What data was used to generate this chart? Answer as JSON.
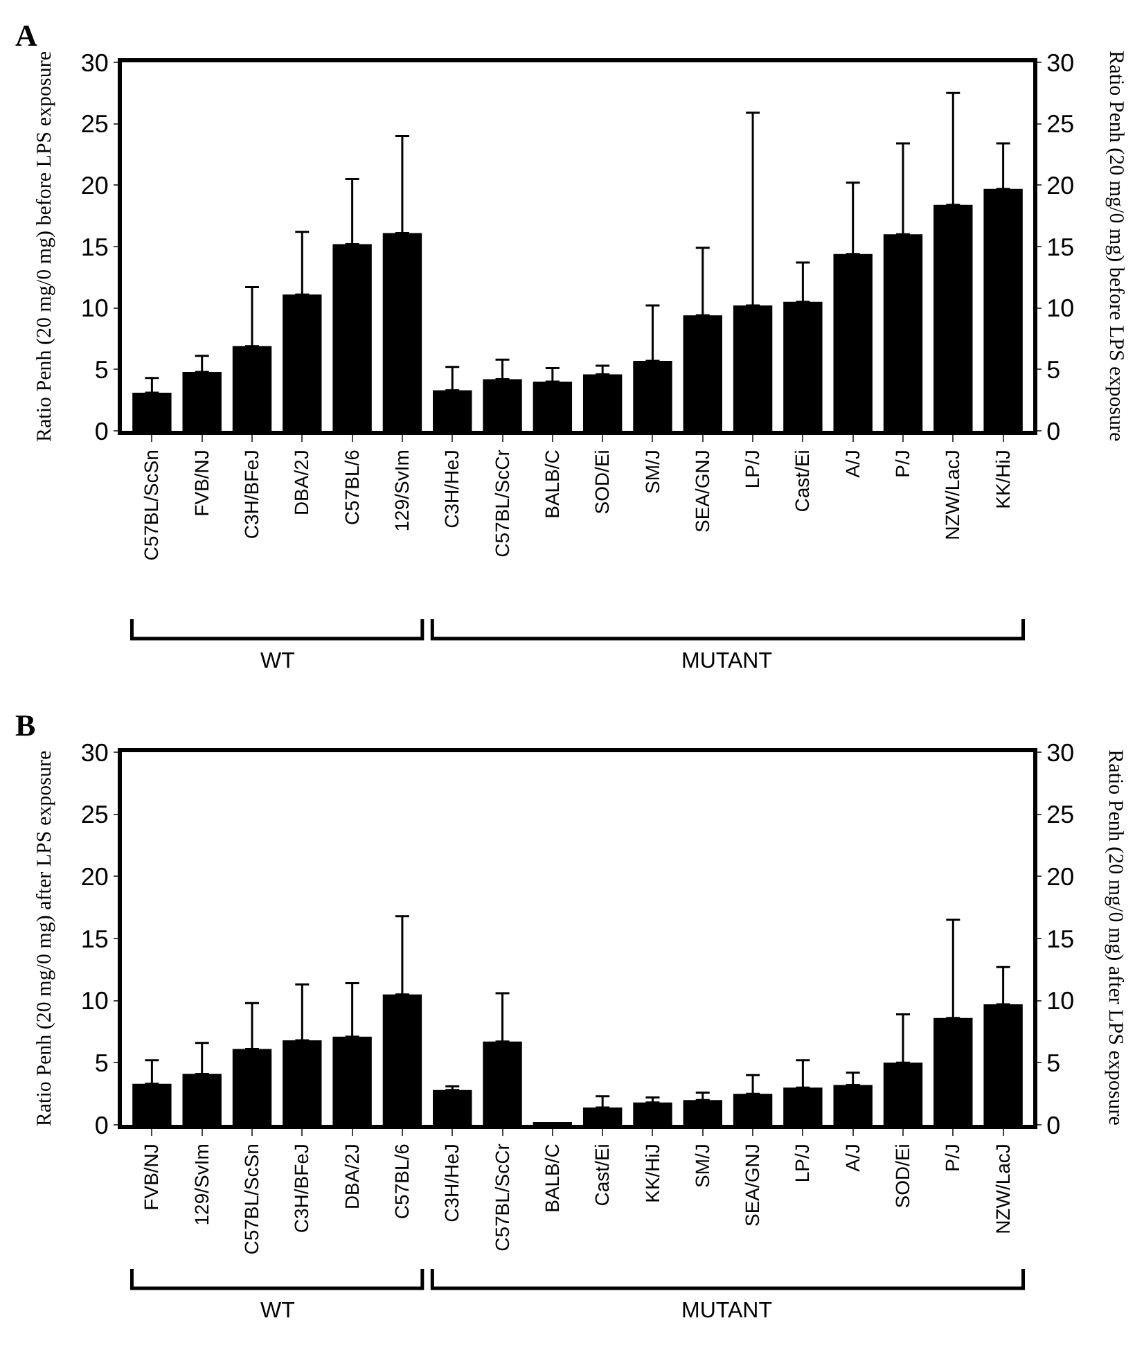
{
  "chart_data": [
    {
      "type": "bar",
      "categories": [
        "C57BL/ScSn",
        "FVB/NJ",
        "C3H/BFeJ",
        "DBA/2J",
        "C57BL/6",
        "129/SvIm",
        "C3H/HeJ",
        "C57BL/ScCr",
        "BALB/C",
        "SOD/Ei",
        "SM/J",
        "SEA/GNJ",
        "LP/J",
        "Cast/Ei",
        "A/J",
        "P/J",
        "NZW/LacJ",
        "KK/HiJ"
      ],
      "values": [
        3.1,
        4.8,
        6.9,
        11.1,
        15.2,
        16.1,
        3.3,
        4.2,
        4.0,
        4.6,
        5.7,
        9.4,
        10.2,
        10.5,
        14.4,
        16.0,
        18.4,
        19.7
      ],
      "errors": [
        [
          3.1,
          4.3
        ],
        [
          4.8,
          6.1
        ],
        [
          6.9,
          11.7
        ],
        [
          11.1,
          16.2
        ],
        [
          15.2,
          20.5
        ],
        [
          16.1,
          24.0
        ],
        [
          3.3,
          5.2
        ],
        [
          4.2,
          5.8
        ],
        [
          4.0,
          5.1
        ],
        [
          4.6,
          5.3
        ],
        [
          5.7,
          10.2
        ],
        [
          9.4,
          14.9
        ],
        [
          10.2,
          25.9
        ],
        [
          10.5,
          13.7
        ],
        [
          14.4,
          20.2
        ],
        [
          16.0,
          23.4
        ],
        [
          18.4,
          27.5
        ],
        [
          19.7,
          23.4
        ]
      ],
      "color": "#000000",
      "ylabel": "Ratio Penh (20 mg/0 mg) before LPS exposure",
      "y2label": "Ratio Penh (20 mg/0 mg) before LPS exposure",
      "ylim": [
        0,
        30
      ],
      "yticks": [
        0,
        5,
        10,
        15,
        20,
        25,
        30
      ],
      "y2lim": [
        0,
        30
      ],
      "y2ticks": [
        0,
        5,
        10,
        15,
        20,
        25,
        30
      ],
      "annotations": [
        "A",
        "WT",
        "MUTANT"
      ],
      "grid": false,
      "legend": false
    },
    {
      "type": "bar",
      "categories": [
        "FVB/NJ",
        "129/SvIm",
        "C57BL/ScSn",
        "C3H/BFeJ",
        "DBA/2J",
        "C57BL/6",
        "C3H/HeJ",
        "C57BL/ScCr",
        "BALB/C",
        "Cast/Ei",
        "KK/HiJ",
        "SM/J",
        "SEA/GNJ",
        "LP/J",
        "A/J",
        "SOD/Ei",
        "P/J",
        "NZW/LacJ"
      ],
      "values": [
        3.3,
        4.1,
        6.1,
        6.8,
        7.1,
        10.5,
        2.8,
        6.7,
        0.2,
        1.4,
        1.8,
        2.0,
        2.5,
        3.0,
        3.2,
        5.0,
        8.6,
        9.7
      ],
      "errors": [
        [
          3.3,
          5.2
        ],
        [
          4.1,
          6.6
        ],
        [
          6.1,
          9.8
        ],
        [
          6.8,
          11.3
        ],
        [
          7.1,
          11.4
        ],
        [
          10.5,
          16.8
        ],
        [
          2.8,
          3.1
        ],
        [
          6.7,
          10.6
        ],
        null,
        [
          1.4,
          2.3
        ],
        [
          1.8,
          2.2
        ],
        [
          2.0,
          2.6
        ],
        [
          2.5,
          4.0
        ],
        [
          3.0,
          5.2
        ],
        [
          3.2,
          4.2
        ],
        [
          5.0,
          8.9
        ],
        [
          8.6,
          16.5
        ],
        [
          9.7,
          12.7
        ]
      ],
      "color": "#000000",
      "ylabel": "Ratio Penh (20 mg/0 mg) after LPS exposure",
      "y2label": "Ratio Penh (20 mg/0 mg) after LPS exposure",
      "ylim": [
        0,
        30
      ],
      "yticks": [
        0,
        5,
        10,
        15,
        20,
        25,
        30
      ],
      "y2lim": [
        0,
        30
      ],
      "y2ticks": [
        0,
        5,
        10,
        15,
        20,
        25,
        30
      ],
      "annotations": [
        "B",
        "WT",
        "MUTANT"
      ],
      "grid": false,
      "legend": false
    }
  ]
}
